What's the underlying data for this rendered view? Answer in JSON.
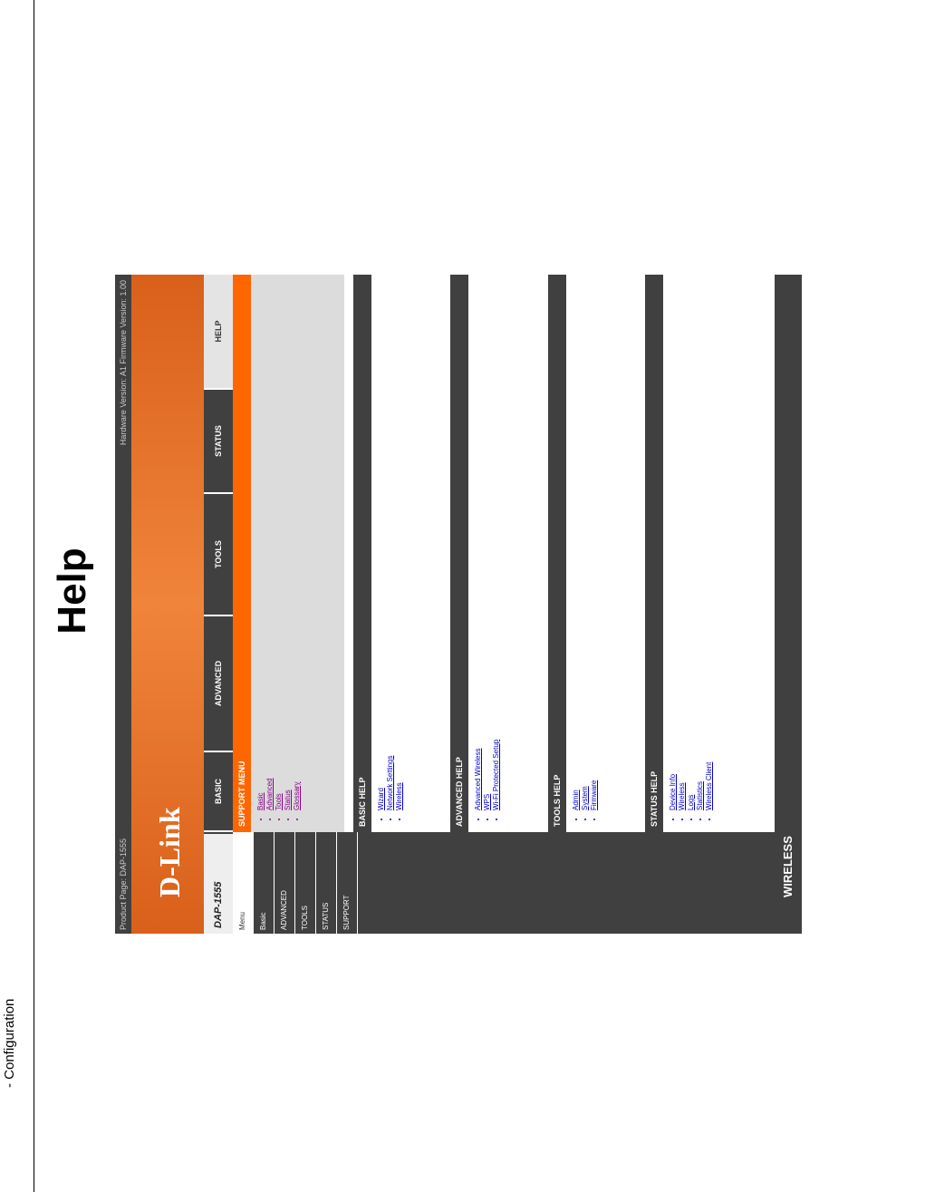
{
  "header": {
    "section": "- Configuration",
    "title": "Help"
  },
  "screenshot": {
    "product": "Product Page: DAP-1555",
    "versions": "Hardware Version: A1   Firmware Version: 1.00",
    "logo": "D-Link",
    "model": "DAP-1555",
    "tabs": [
      "BASIC",
      "ADVANCED",
      "TOOLS",
      "STATUS",
      "HELP"
    ],
    "sidebar": [
      "Menu",
      "Basic",
      "ADVANCED",
      "TOOLS",
      "STATUS",
      "SUPPORT"
    ],
    "support_menu": {
      "title": "SUPPORT MENU",
      "items": [
        "Basic",
        "Advanced",
        "Tools",
        "Status",
        "Glossary"
      ]
    },
    "sections": [
      {
        "title": "BASIC HELP",
        "items": [
          "Wizard",
          "Network Settings",
          "Wireless"
        ]
      },
      {
        "title": "ADVANCED HELP",
        "items": [
          "Advanced Wireless",
          "WPS",
          "Wi-Fi Protected Setup"
        ]
      },
      {
        "title": "TOOLS HELP",
        "items": [
          "Admin",
          "System",
          "Firmware"
        ]
      },
      {
        "title": "STATUS HELP",
        "items": [
          "Device Info",
          "Wireless",
          "Logs",
          "Statistics",
          "Wireless Client"
        ]
      }
    ],
    "footer": "WIRELESS"
  }
}
